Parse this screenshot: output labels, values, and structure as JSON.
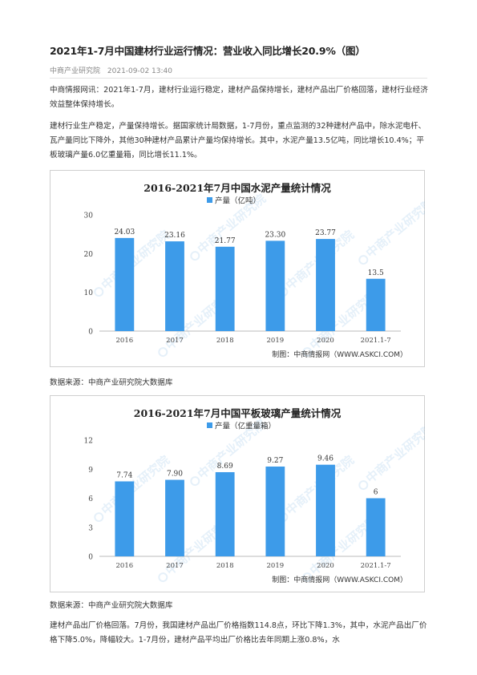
{
  "article": {
    "title": "2021年1-7月中国建材行业运行情况：营业收入同比增长20.9%（图）",
    "source_name": "中商产业研究院",
    "date": "2021-09-02 13:40",
    "paragraphs": [
      "中商情报网讯：2021年1-7月，建材行业运行稳定，建材产品保持增长，建材产品出厂价格回落，建材行业经济效益整体保持增长。",
      "建材行业生产稳定，产量保持增长。据国家统计局数据，1-7月份，重点监测的32种建材产品中，除水泥电杆、瓦产量同比下降外，其他30种建材产品累计产量均保持增长。其中，水泥产量13.5亿吨，同比增长10.4%；平板玻璃产量6.0亿重量箱，同比增长11.1%。",
      "建材产品出厂价格回落。7月份，我国建材产品出厂价格指数114.8点，环比下降1.3%，其中，水泥产品出厂价格下降5.0%，降幅较大。1-7月份，建材产品平均出厂价格比去年同期上涨0.8%，水"
    ],
    "data_source_1": "数据来源：中商产业研究院大数据库",
    "data_source_2": "数据来源：中商产业研究院大数据库"
  },
  "colors": {
    "bar": "#3d9be9",
    "border": "#cfcfcf",
    "chart_bg": "#ffffff",
    "text": "#333333"
  },
  "chart_data": [
    {
      "type": "bar",
      "title": "2016-2021年7月中国水泥产量统计情况",
      "legend": "产量（亿吨）",
      "categories": [
        "2016",
        "2017",
        "2018",
        "2019",
        "2020",
        "2021.1-7"
      ],
      "values": [
        24.03,
        23.16,
        21.77,
        23.3,
        23.77,
        13.5
      ],
      "value_labels": [
        "24.03",
        "23.16",
        "21.77",
        "23.30",
        "23.77",
        "13.5"
      ],
      "yticks": [
        "0",
        "10",
        "20",
        "30"
      ],
      "ylim": [
        0,
        30
      ],
      "grid": false,
      "legend_position": "top-center",
      "credit": "制图：中商情报网（WWW.ASKCI.COM）",
      "watermark": "中商产业研究院"
    },
    {
      "type": "bar",
      "title": "2016-2021年7月中国平板玻璃产量统计情况",
      "legend": "产量（亿重量箱）",
      "categories": [
        "2016",
        "2017",
        "2018",
        "2019",
        "2020",
        "2021.1-7"
      ],
      "values": [
        7.74,
        7.9,
        8.69,
        9.27,
        9.46,
        6
      ],
      "value_labels": [
        "7.74",
        "7.90",
        "8.69",
        "9.27",
        "9.46",
        "6"
      ],
      "yticks": [
        "0",
        "3",
        "6",
        "9",
        "12"
      ],
      "ylim": [
        0,
        12
      ],
      "grid": false,
      "legend_position": "top-center",
      "credit": "制图：中商情报网（WWW.ASKCI.COM）",
      "watermark": "中商产业研究院"
    }
  ]
}
